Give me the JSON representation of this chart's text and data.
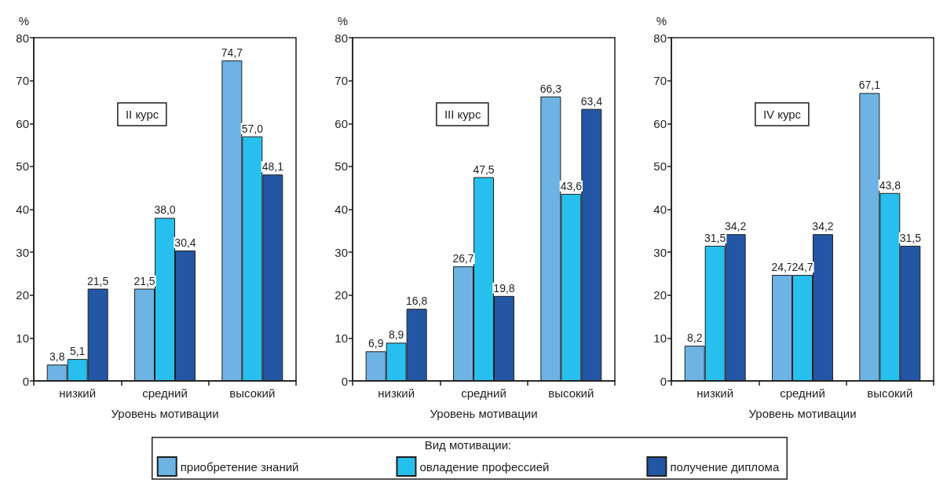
{
  "chart_data": [
    {
      "type": "bar",
      "title": "II курс",
      "ylabel": "%",
      "xlabel": "Уровень мотивации",
      "legend_title": "Вид мотивации:",
      "legend": "bottom",
      "categories": [
        "низкий",
        "средний",
        "высокий"
      ],
      "series": [
        {
          "name": "приобретение знаний",
          "color": "#6db3e3",
          "values": [
            3.8,
            21.5,
            74.7
          ],
          "value_labels": [
            "3,8",
            "21,5",
            "74,7"
          ]
        },
        {
          "name": "овладение профессией",
          "color": "#27c0ee",
          "values": [
            5.1,
            38.0,
            57.0
          ],
          "value_labels": [
            "5,1",
            "38,0",
            "57,0"
          ]
        },
        {
          "name": "получение диплома",
          "color": "#2456a6",
          "values": [
            21.5,
            30.4,
            48.1
          ],
          "value_labels": [
            "21,5",
            "30,4",
            "48,1"
          ]
        }
      ],
      "ylim": [
        0,
        80
      ],
      "yticks": [
        0,
        10,
        20,
        30,
        40,
        50,
        60,
        70,
        80
      ]
    },
    {
      "type": "bar",
      "title": "III курс",
      "ylabel": "%",
      "xlabel": "Уровень мотивации",
      "categories": [
        "низкий",
        "средний",
        "высокий"
      ],
      "series": [
        {
          "color": "#6db3e3",
          "values": [
            6.9,
            26.7,
            66.3
          ],
          "value_labels": [
            "6,9",
            "26,7",
            "66,3"
          ]
        },
        {
          "color": "#27c0ee",
          "values": [
            8.9,
            47.5,
            43.6
          ],
          "value_labels": [
            "8,9",
            "47,5",
            "43,6"
          ]
        },
        {
          "color": "#2456a6",
          "values": [
            16.8,
            19.8,
            63.4
          ],
          "value_labels": [
            "16,8",
            "19,8",
            "63,4"
          ]
        }
      ],
      "ylim": [
        0,
        80
      ],
      "yticks": [
        0,
        10,
        20,
        30,
        40,
        50,
        60,
        70,
        80
      ]
    },
    {
      "type": "bar",
      "title": "IV курс",
      "ylabel": "%",
      "xlabel": "Уровень мотивации",
      "categories": [
        "низкий",
        "средний",
        "высокий"
      ],
      "series": [
        {
          "color": "#6db3e3",
          "values": [
            8.2,
            24.7,
            67.1
          ],
          "value_labels": [
            "8,2",
            "24,7",
            "67,1"
          ]
        },
        {
          "color": "#27c0ee",
          "values": [
            31.5,
            24.7,
            43.8
          ],
          "value_labels": [
            "31,5",
            "24,7",
            "43,8"
          ]
        },
        {
          "color": "#2456a6",
          "values": [
            34.2,
            34.2,
            31.5
          ],
          "value_labels": [
            "34,2",
            "34,2",
            "31,5"
          ]
        }
      ],
      "ylim": [
        0,
        80
      ],
      "yticks": [
        0,
        10,
        20,
        30,
        40,
        50,
        60,
        70,
        80
      ]
    }
  ]
}
